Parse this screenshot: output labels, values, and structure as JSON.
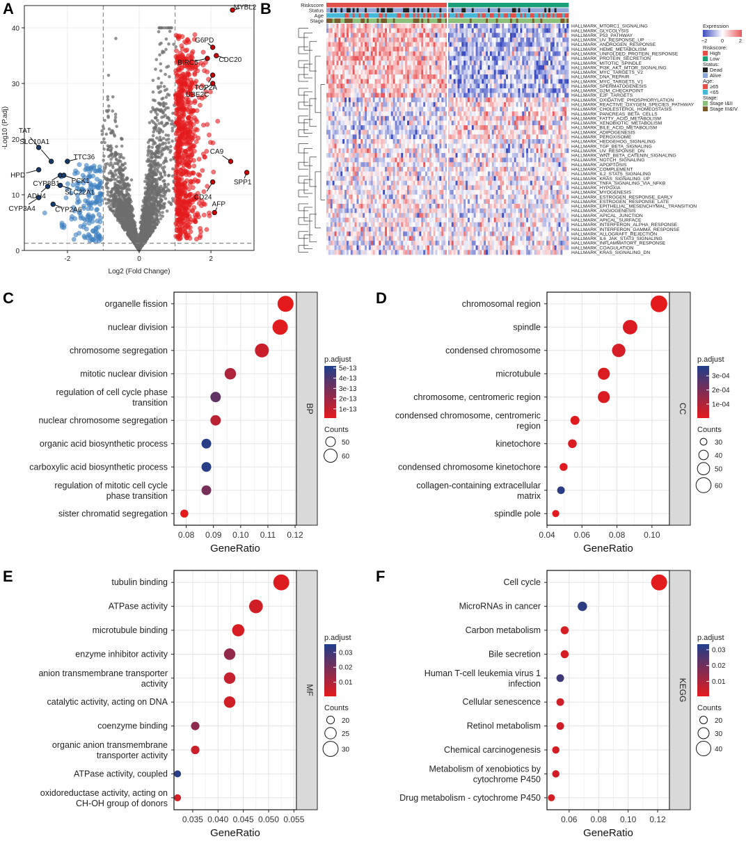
{
  "panels": {
    "A": "A",
    "B": "B",
    "C": "C",
    "D": "D",
    "E": "E",
    "F": "F"
  },
  "colors": {
    "sig_up": "#e41a1c",
    "sig_down": "#3a7ebf",
    "nonsig": "#6e6e6e",
    "padj_low": "#e41a1c",
    "padj_high": "#1f3f8a",
    "strip": "#d9d9d9",
    "heat_high": "#e8585a",
    "heat_low": "#3b4cc0"
  },
  "chart_data": [
    {
      "panel": "A",
      "type": "scatter",
      "title": "",
      "xlabel": "Log2 (Fold Change)",
      "ylabel": "-Log10 (P.adj)",
      "xlim": [
        -3.2,
        3.2
      ],
      "ylim": [
        0,
        44
      ],
      "xticks": [
        -2,
        0,
        2
      ],
      "yticks": [
        0,
        10,
        20,
        30,
        40
      ],
      "thresholds": {
        "x": [
          -1,
          1
        ],
        "y": 1.3
      },
      "labeled_points": [
        {
          "gene": "MYBL2",
          "x": 2.6,
          "y": 43.2,
          "dir": "up"
        },
        {
          "gene": "G6PD",
          "x": 2.05,
          "y": 36.5,
          "dir": "up"
        },
        {
          "gene": "CDC20",
          "x": 2.15,
          "y": 35.0,
          "dir": "up"
        },
        {
          "gene": "BIRC5",
          "x": 1.9,
          "y": 34.5,
          "dir": "up"
        },
        {
          "gene": "TOP2A",
          "x": 2.05,
          "y": 31.5,
          "dir": "up"
        },
        {
          "gene": "UBE2C",
          "x": 2.05,
          "y": 30.0,
          "dir": "up"
        },
        {
          "gene": "CA9",
          "x": 2.55,
          "y": 16.0,
          "dir": "up"
        },
        {
          "gene": "SPP1",
          "x": 3.0,
          "y": 14.0,
          "dir": "up"
        },
        {
          "gene": "CD24",
          "x": 2.05,
          "y": 12.3,
          "dir": "up"
        },
        {
          "gene": "AFP",
          "x": 2.1,
          "y": 6.8,
          "dir": "up"
        },
        {
          "gene": "TAT",
          "x": -2.8,
          "y": 18.5,
          "dir": "down"
        },
        {
          "gene": "SLC10A1",
          "x": -2.45,
          "y": 16.0,
          "dir": "down"
        },
        {
          "gene": "TTC36",
          "x": -2.0,
          "y": 16.0,
          "dir": "down"
        },
        {
          "gene": "HPD",
          "x": -2.8,
          "y": 14.5,
          "dir": "down"
        },
        {
          "gene": "CYP8B1",
          "x": -2.2,
          "y": 13.5,
          "dir": "down"
        },
        {
          "gene": "PCK1",
          "x": -2.1,
          "y": 13.5,
          "dir": "down"
        },
        {
          "gene": "ADH4",
          "x": -2.55,
          "y": 11.5,
          "dir": "down"
        },
        {
          "gene": "SLC22A1",
          "x": -2.2,
          "y": 11.7,
          "dir": "down"
        },
        {
          "gene": "CYP3A4",
          "x": -2.8,
          "y": 9.5,
          "dir": "down"
        },
        {
          "gene": "CYP2A6",
          "x": -2.4,
          "y": 8.3,
          "dir": "down"
        }
      ]
    },
    {
      "panel": "B",
      "type": "heatmap",
      "annotation_rows": [
        "Riskscore",
        "Status",
        "Age",
        "Stage"
      ],
      "rows": [
        "HALLMARK_MTORC1_SIGNALING",
        "HALLMARK_GLYCOLYSIS",
        "HALLMARK_P53_PATHWAY",
        "HALLMARK_UV_RESPONSE_UP",
        "HALLMARK_ANDROGEN_RESPONSE",
        "HALLMARK_HEME_METABOLISM",
        "HALLMARK_UNFOLDED_PROTEIN_RESPONSE",
        "HALLMARK_PROTEIN_SECRETION",
        "HALLMARK_MITOTIC_SPINDLE",
        "HALLMARK_PI3K_AKT_MTOR_SIGNALING",
        "HALLMARK_MYC_TARGETS_V2",
        "HALLMARK_DNA_REPAIR",
        "HALLMARK_MYC_TARGETS_V1",
        "HALLMARK_SPERMATOGENESIS",
        "HALLMARK_G2M_CHECKPOINT",
        "HALLMARK_E2F_TARGETS",
        "HALLMARK_OXIDATIVE_PHOSPHORYLATION",
        "HALLMARK_REACTIVE_OXYGEN_SPECIES_PATHWAY",
        "HALLMARK_CHOLESTEROL_HOMEOSTASIS",
        "HALLMARK_PANCREAS_BETA_CELLS",
        "HALLMARK_FATTY_ACID_METABOLISM",
        "HALLMARK_XENOBIOTIC_METABOLISM",
        "HALLMARK_BILE_ACID_METABOLISM",
        "HALLMARK_ADIPOGENESIS",
        "HALLMARK_PEROXISOME",
        "HALLMARK_HEDGEHOG_SIGNALING",
        "HALLMARK_TGF_BETA_SIGNALING",
        "HALLMARK_UV_RESPONSE_DN",
        "HALLMARK_WNT_BETA_CATENIN_SIGNALING",
        "HALLMARK_NOTCH_SIGNALING",
        "HALLMARK_APOPTOSIS",
        "HALLMARK_COMPLEMENT",
        "HALLMARK_IL2_STAT5_SIGNALING",
        "HALLMARK_KRAS_SIGNALING_UP",
        "HALLMARK_TNFA_SIGNALING_VIA_NFKB",
        "HALLMARK_HYPOXIA",
        "HALLMARK_MYOGENESIS",
        "HALLMARK_ESTROGEN_RESPONSE_EARLY",
        "HALLMARK_ESTROGEN_RESPONSE_LATE",
        "HALLMARK_EPITHELIAL_MESENCHYMAL_TRANSITION",
        "HALLMARK_ANGIOGENESIS",
        "HALLMARK_APICAL_JUNCTION",
        "HALLMARK_APICAL_SURFACE",
        "HALLMARK_INTERFERON_ALPHA_RESPONSE",
        "HALLMARK_INTERFERON_GAMMA_RESPONSE",
        "HALLMARK_ALLOGRAFT_REJECTION",
        "HALLMARK_IL6_JAK_STAT3_SIGNALING",
        "HALLMARK_INFLAMMATORY_RESPONSE",
        "HALLMARK_COAGULATION",
        "HALLMARK_KRAS_SIGNALING_DN"
      ],
      "legend": {
        "expression_title": "Expression",
        "expression_ticks": [
          "−2",
          "0",
          "2"
        ],
        "groups": [
          {
            "title": "Riskscore:",
            "items": [
              {
                "label": "High",
                "color": "#e0504a"
              },
              {
                "label": "Low",
                "color": "#1b9e77"
              }
            ]
          },
          {
            "title": "Status:",
            "items": [
              {
                "label": "Dead",
                "color": "#222222"
              },
              {
                "label": "Alive",
                "color": "#8fa8d8"
              }
            ]
          },
          {
            "title": "Age:",
            "items": [
              {
                "label": "≥65",
                "color": "#e0504a"
              },
              {
                "label": "<65",
                "color": "#45b8d8"
              }
            ]
          },
          {
            "title": "Stage:",
            "items": [
              {
                "label": "Stage I&II",
                "color": "#8ac07a"
              },
              {
                "label": "Stage III&IV",
                "color": "#7a5a2a"
              }
            ]
          }
        ]
      }
    },
    {
      "panel": "C",
      "type": "scatter",
      "subtype": "dot-enrichment",
      "strip_label": "BP",
      "xlabel": "GeneRatio",
      "xlim": [
        0.0755,
        0.1205
      ],
      "xticks": [
        0.08,
        0.09,
        0.1,
        0.11,
        0.12
      ],
      "xtick_labels": [
        "0.08",
        "0.09",
        "0.10",
        "0.11",
        "0.12"
      ],
      "categories": [
        "organelle fission",
        "nuclear division",
        "chromosome segregation",
        "mitotic nuclear division",
        "regulation of cell cycle phase transition",
        "nuclear chromosome segregation",
        "organic acid biosynthetic process",
        "carboxylic acid biosynthetic process",
        "regulation of mitotic cell cycle phase transition",
        "sister chromatid segregation"
      ],
      "gene_ratio": [
        0.1165,
        0.1145,
        0.1078,
        0.0962,
        0.0908,
        0.0908,
        0.0874,
        0.0874,
        0.0874,
        0.0793
      ],
      "counts": [
        68,
        66,
        62,
        55,
        52,
        52,
        50,
        50,
        50,
        45
      ],
      "p_adjust": [
        1e-14,
        2e-14,
        8e-14,
        1.5e-13,
        3.5e-13,
        1.2e-13,
        5e-13,
        5e-13,
        3e-13,
        1e-14
      ],
      "legend": {
        "color_title": "p.adjust",
        "color_range": [
          1e-14,
          5.2e-13
        ],
        "color_ticks": [
          5e-13,
          4e-13,
          3e-13,
          2e-13,
          1e-13
        ],
        "color_tick_labels": [
          "5e-13",
          "4e-13",
          "3e-13",
          "2e-13",
          "1e-13"
        ],
        "size_title": "Counts",
        "size_values": [
          50,
          60
        ],
        "size_range": [
          40,
          70
        ]
      }
    },
    {
      "panel": "D",
      "type": "scatter",
      "subtype": "dot-enrichment",
      "strip_label": "CC",
      "xlabel": "GeneRatio",
      "xlim": [
        0.04,
        0.11
      ],
      "xticks": [
        0.04,
        0.06,
        0.08,
        0.1
      ],
      "xtick_labels": [
        "0.04",
        "0.06",
        "0.08",
        "0.10"
      ],
      "categories": [
        "chromosomal region",
        "spindle",
        "condensed chromosome",
        "microtubule",
        "chromosome, centromeric region",
        "condensed chromosome, centromeric region",
        "kinetochore",
        "condensed chromosome kinetochore",
        "collagen-containing extracellular matrix",
        "spindle pole"
      ],
      "gene_ratio": [
        0.104,
        0.0875,
        0.081,
        0.0725,
        0.0725,
        0.056,
        0.0545,
        0.0495,
        0.048,
        0.045
      ],
      "counts": [
        66,
        58,
        54,
        49,
        49,
        38,
        37,
        34,
        33,
        31
      ],
      "p_adjust": [
        1e-06,
        2e-05,
        3e-05,
        2e-05,
        2e-05,
        1e-05,
        2e-05,
        1e-05,
        0.00035,
        1e-05
      ],
      "legend": {
        "color_title": "p.adjust",
        "color_range": [
          1e-06,
          0.00037
        ],
        "color_ticks": [
          0.0003,
          0.0002,
          0.0001
        ],
        "color_tick_labels": [
          "3e-04",
          "2e-04",
          "1e-04"
        ],
        "size_title": "Counts",
        "size_values": [
          30,
          40,
          50,
          60
        ],
        "size_range": [
          28,
          66
        ]
      }
    },
    {
      "panel": "E",
      "type": "scatter",
      "subtype": "dot-enrichment",
      "strip_label": "MF",
      "xlabel": "GeneRatio",
      "xlim": [
        0.0313,
        0.0555
      ],
      "xticks": [
        0.035,
        0.04,
        0.045,
        0.05,
        0.055
      ],
      "xtick_labels": [
        "0.035",
        "0.040",
        "0.045",
        "0.050",
        "0.055"
      ],
      "categories": [
        "tubulin binding",
        "ATPase activity",
        "microtubule binding",
        "enzyme inhibitor activity",
        "anion transmembrane transporter activity",
        "catalytic activity, acting on DNA",
        "coenzyme binding",
        "organic anion transmembrane transporter activity",
        "ATPase activity, coupled",
        "oxidoreductase activity, acting on CH-OH group of donors"
      ],
      "gene_ratio": [
        0.0525,
        0.0475,
        0.044,
        0.0423,
        0.0423,
        0.0423,
        0.0355,
        0.0355,
        0.032,
        0.032
      ],
      "counts": [
        31,
        28,
        26,
        25,
        25,
        25,
        21,
        21,
        19,
        19
      ],
      "p_adjust": [
        0.002,
        0.004,
        0.003,
        0.015,
        0.006,
        0.004,
        0.016,
        0.005,
        0.034,
        0.004
      ],
      "legend": {
        "color_title": "p.adjust",
        "color_range": [
          0.0005,
          0.0355
        ],
        "color_ticks": [
          0.03,
          0.02,
          0.01
        ],
        "color_tick_labels": [
          "0.03",
          "0.02",
          "0.01"
        ],
        "size_title": "Counts",
        "size_values": [
          20,
          25,
          30
        ],
        "size_range": [
          18,
          32
        ]
      }
    },
    {
      "panel": "F",
      "type": "scatter",
      "subtype": "dot-enrichment",
      "strip_label": "KEGG",
      "xlabel": "GeneRatio",
      "xlim": [
        0.045,
        0.128
      ],
      "xticks": [
        0.06,
        0.08,
        0.1,
        0.12
      ],
      "xtick_labels": [
        "0.06",
        "0.08",
        "0.10",
        "0.12"
      ],
      "categories": [
        "Cell cycle",
        "MicroRNAs in cancer",
        "Carbon metabolism",
        "Bile secretion",
        "Human T-cell leukemia virus 1 infection",
        "Cellular senescence",
        "Retinol metabolism",
        "Chemical carcinogenesis",
        "Metabolism of xenobiotics by cytochrome P450",
        "Drug metabolism - cytochrome P450"
      ],
      "gene_ratio": [
        0.121,
        0.069,
        0.057,
        0.057,
        0.054,
        0.054,
        0.054,
        0.051,
        0.051,
        0.048
      ],
      "counts": [
        44,
        25,
        21,
        21,
        20,
        20,
        20,
        19,
        19,
        18
      ],
      "p_adjust": [
        0.001,
        0.031,
        0.003,
        0.003,
        0.028,
        0.004,
        0.004,
        0.003,
        0.004,
        0.003
      ],
      "legend": {
        "color_title": "p.adjust",
        "color_range": [
          0.0005,
          0.0335
        ],
        "color_ticks": [
          0.03,
          0.02,
          0.01
        ],
        "color_tick_labels": [
          "0.03",
          "0.02",
          "0.01"
        ],
        "size_title": "Counts",
        "size_values": [
          20,
          30,
          40
        ],
        "size_range": [
          16,
          46
        ]
      }
    }
  ]
}
